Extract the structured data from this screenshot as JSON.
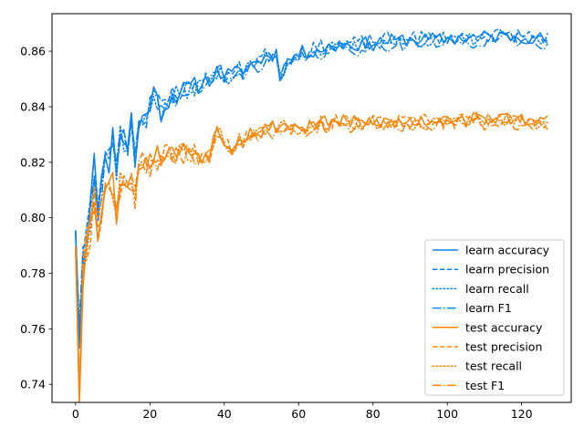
{
  "chart_data": {
    "type": "line",
    "title": "",
    "xlabel": "",
    "ylabel": "",
    "xlim": [
      -6.35,
      133.35
    ],
    "ylim": [
      0.7335,
      0.8735
    ],
    "x_ticks": [
      0,
      20,
      40,
      60,
      80,
      100,
      120
    ],
    "y_ticks": [
      0.74,
      0.76,
      0.78,
      0.8,
      0.82,
      0.84,
      0.86
    ],
    "y_tick_labels": [
      "0.74",
      "0.76",
      "0.78",
      "0.80",
      "0.82",
      "0.84",
      "0.86"
    ],
    "grid": false,
    "legend_position": "lower-right",
    "colors": {
      "learn": "#0a84f0",
      "test": "#fa850a"
    },
    "n_points": 128,
    "x_start": 0,
    "x_step": 1,
    "anchors": {
      "learn": [
        [
          0,
          0.799
        ],
        [
          1,
          0.756
        ],
        [
          2,
          0.785
        ],
        [
          3,
          0.796
        ],
        [
          4,
          0.803
        ],
        [
          5,
          0.818
        ],
        [
          6,
          0.806
        ],
        [
          7,
          0.812
        ],
        [
          8,
          0.826
        ],
        [
          9,
          0.819
        ],
        [
          10,
          0.829
        ],
        [
          11,
          0.818
        ],
        [
          12,
          0.831
        ],
        [
          14,
          0.825
        ],
        [
          15,
          0.836
        ],
        [
          16,
          0.82
        ],
        [
          17,
          0.832
        ],
        [
          19,
          0.838
        ],
        [
          21,
          0.845
        ],
        [
          23,
          0.838
        ],
        [
          26,
          0.844
        ],
        [
          30,
          0.846
        ],
        [
          35,
          0.849
        ],
        [
          38,
          0.852
        ],
        [
          42,
          0.851
        ],
        [
          46,
          0.854
        ],
        [
          50,
          0.857
        ],
        [
          54,
          0.859
        ],
        [
          55,
          0.851
        ],
        [
          57,
          0.856
        ],
        [
          60,
          0.859
        ],
        [
          64,
          0.86
        ],
        [
          68,
          0.861
        ],
        [
          72,
          0.862
        ],
        [
          76,
          0.862
        ],
        [
          80,
          0.863
        ],
        [
          90,
          0.864
        ],
        [
          100,
          0.864
        ],
        [
          110,
          0.865
        ],
        [
          120,
          0.865
        ],
        [
          127,
          0.864
        ]
      ],
      "test": [
        [
          0,
          0.793
        ],
        [
          1,
          0.738
        ],
        [
          2,
          0.78
        ],
        [
          3,
          0.79
        ],
        [
          4,
          0.797
        ],
        [
          5,
          0.808
        ],
        [
          6,
          0.795
        ],
        [
          7,
          0.805
        ],
        [
          8,
          0.81
        ],
        [
          10,
          0.812
        ],
        [
          11,
          0.802
        ],
        [
          12,
          0.812
        ],
        [
          14,
          0.814
        ],
        [
          15,
          0.812
        ],
        [
          16,
          0.806
        ],
        [
          17,
          0.82
        ],
        [
          20,
          0.82
        ],
        [
          22,
          0.822
        ],
        [
          26,
          0.823
        ],
        [
          30,
          0.824
        ],
        [
          34,
          0.822
        ],
        [
          36,
          0.823
        ],
        [
          38,
          0.831
        ],
        [
          40,
          0.828
        ],
        [
          42,
          0.825
        ],
        [
          44,
          0.828
        ],
        [
          48,
          0.831
        ],
        [
          52,
          0.832
        ],
        [
          56,
          0.833
        ],
        [
          60,
          0.832
        ],
        [
          64,
          0.833
        ],
        [
          68,
          0.834
        ],
        [
          72,
          0.834
        ],
        [
          76,
          0.834
        ],
        [
          80,
          0.834
        ],
        [
          90,
          0.834
        ],
        [
          100,
          0.835
        ],
        [
          110,
          0.835
        ],
        [
          120,
          0.835
        ],
        [
          127,
          0.834
        ]
      ]
    },
    "series": [
      {
        "name": "learn accuracy",
        "group": "learn",
        "dash": "solid",
        "offset": 0.0003,
        "jitter": 0.0024,
        "seed": 11
      },
      {
        "name": "learn precision",
        "group": "learn",
        "dash": "dashed",
        "offset": 0.0008,
        "jitter": 0.0026,
        "seed": 23
      },
      {
        "name": "learn recall",
        "group": "learn",
        "dash": "dotted",
        "offset": -0.0003,
        "jitter": 0.0023,
        "seed": 37
      },
      {
        "name": "learn F1",
        "group": "learn",
        "dash": "dashdot",
        "offset": -0.0012,
        "jitter": 0.0025,
        "seed": 41
      },
      {
        "name": "test accuracy",
        "group": "test",
        "dash": "solid",
        "offset": 0.0006,
        "jitter": 0.0024,
        "seed": 53
      },
      {
        "name": "test precision",
        "group": "test",
        "dash": "dashed",
        "offset": 0.0004,
        "jitter": 0.0027,
        "seed": 67
      },
      {
        "name": "test recall",
        "group": "test",
        "dash": "dotted",
        "offset": -0.0002,
        "jitter": 0.0023,
        "seed": 71
      },
      {
        "name": "test F1",
        "group": "test",
        "dash": "dashdot",
        "offset": -0.001,
        "jitter": 0.0026,
        "seed": 89
      }
    ]
  }
}
